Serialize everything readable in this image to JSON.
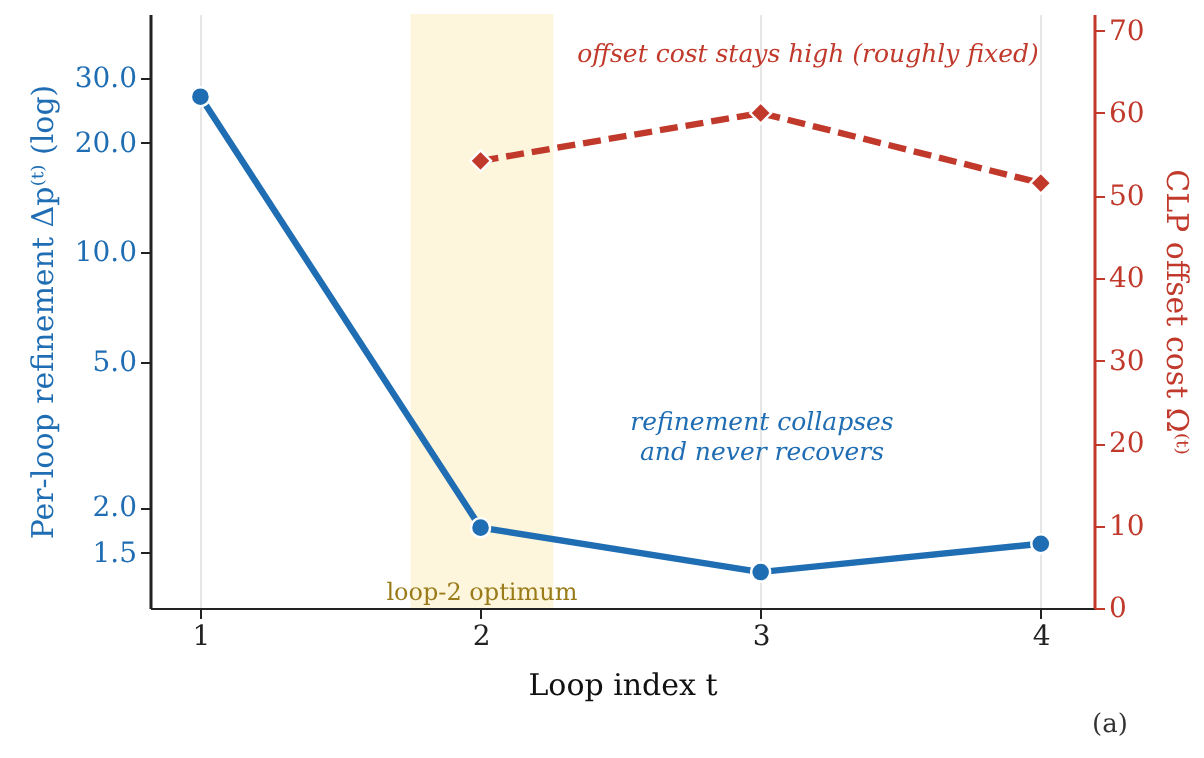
{
  "chart_data": {
    "type": "line",
    "xlabel": "Loop index t",
    "ylabel": "Per-loop refinement Δp⁽ᵗ⁾  (log)",
    "y2label": "CLP offset cost Ω⁽ᵗ⁾",
    "x": [
      1,
      2,
      3,
      4
    ],
    "xlim": [
      0.82,
      4.19
    ],
    "xticks": [
      1,
      2,
      3,
      4
    ],
    "ylim": [
      1.06,
      45
    ],
    "yticks": [
      {
        "value": 1.5,
        "label": "1.5"
      },
      {
        "value": 2,
        "label": "2.0"
      },
      {
        "value": 5,
        "label": "5.0"
      },
      {
        "value": 10,
        "label": "10.0"
      },
      {
        "value": 20,
        "label": "20.0"
      },
      {
        "value": 30,
        "label": "30.0"
      }
    ],
    "y2lim": [
      0,
      72
    ],
    "y2ticks": [
      0,
      10,
      20,
      30,
      40,
      50,
      60,
      70
    ],
    "log": "y",
    "grid": "x",
    "legend": false,
    "series": [
      {
        "color": "#1f6db3",
        "values": [
          26.7,
          1.76,
          1.33,
          1.59
        ],
        "marker": "circle",
        "line_style": "solid"
      },
      {
        "color": "#c0392b",
        "x": [
          2,
          3,
          4
        ],
        "values": [
          54.2,
          60,
          51.5
        ],
        "axis": "y2",
        "marker": "diamond",
        "line_style": "dashed"
      }
    ],
    "bands": [
      {
        "axis": "x",
        "from": 1.75,
        "to": 2.26,
        "label": "loop-2 optimum",
        "color": "#fdf5dc"
      }
    ],
    "annotations": [
      "offset cost stays high (roughly fixed)",
      "refinement collapses\nand never recovers",
      "(a)"
    ]
  }
}
